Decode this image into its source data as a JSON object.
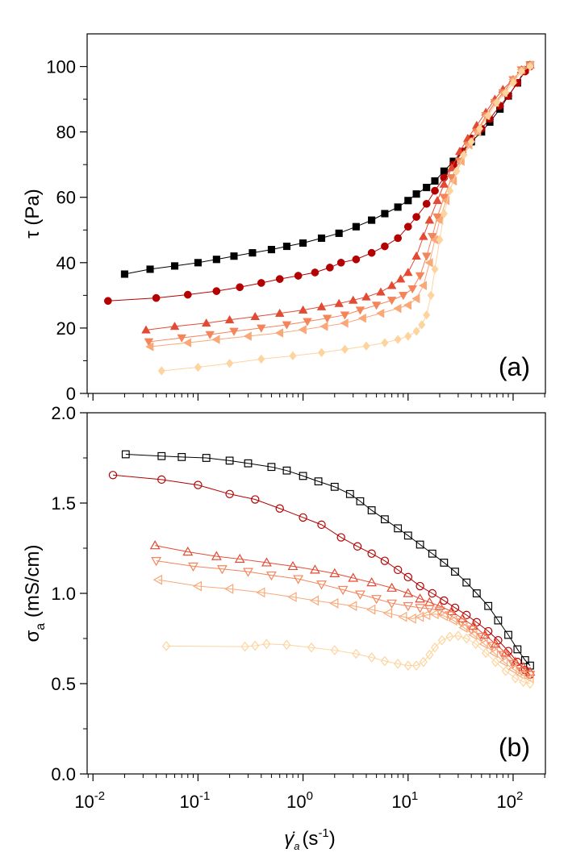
{
  "chart_data": [
    {
      "type": "line",
      "xscale": "log",
      "xlim": [
        0.0088,
        203
      ],
      "xticks": [
        0.01,
        0.1,
        1,
        10,
        100
      ],
      "ylim": [
        0,
        110
      ],
      "yticks": [
        0,
        20,
        40,
        60,
        80,
        100
      ],
      "ylabel": "τ (Pa)",
      "annotation": "(a)",
      "filled": true,
      "series": [
        {
          "color": "#000000",
          "marker": "square",
          "x": [
            0.02,
            0.035,
            0.06,
            0.1,
            0.15,
            0.22,
            0.33,
            0.5,
            0.7,
            1.0,
            1.5,
            2.2,
            3.2,
            4.5,
            6,
            8,
            10,
            12,
            15,
            18,
            22,
            27,
            33,
            40,
            50,
            60,
            75,
            90,
            110,
            130,
            145
          ],
          "values": [
            36.5,
            38,
            39,
            40,
            41,
            42,
            43,
            44,
            45,
            46,
            47.5,
            49,
            51,
            53,
            55,
            57,
            59,
            61,
            63,
            65,
            68,
            71,
            74,
            77,
            80,
            83,
            87,
            91,
            95,
            99,
            100.5
          ]
        },
        {
          "color": "#b30000",
          "marker": "circle",
          "x": [
            0.0139,
            0.04,
            0.08,
            0.15,
            0.25,
            0.4,
            0.6,
            0.9,
            1.3,
            1.8,
            2.3,
            3.2,
            4.5,
            6,
            8,
            10,
            12,
            15,
            18,
            22,
            27,
            33,
            40,
            50,
            60,
            75,
            90,
            110,
            130,
            145
          ],
          "values": [
            28.3,
            29.2,
            30.2,
            31.3,
            32.5,
            33.8,
            35,
            36,
            37,
            38.5,
            40,
            41,
            43,
            45,
            47.5,
            51,
            54,
            58,
            62,
            66,
            70,
            74,
            78,
            81,
            84,
            88,
            91,
            95,
            98.5,
            100
          ]
        },
        {
          "color": "#e34a33",
          "marker": "triangle-up",
          "x": [
            0.032,
            0.06,
            0.12,
            0.2,
            0.35,
            0.6,
            1,
            1.5,
            2.2,
            3,
            4,
            5.5,
            7,
            8.5,
            10,
            12,
            14,
            16,
            19,
            22,
            26,
            31,
            37,
            45,
            55,
            67,
            80,
            100,
            120,
            145
          ],
          "values": [
            19.4,
            20.5,
            21.5,
            22.5,
            23.5,
            24.5,
            25.5,
            26.5,
            27.5,
            28.5,
            29.5,
            31,
            33,
            35,
            37,
            42,
            48,
            53,
            59,
            64,
            69,
            74,
            78,
            82,
            86,
            90,
            93,
            96,
            99,
            100.5
          ]
        },
        {
          "color": "#f4845a",
          "marker": "triangle-down",
          "x": [
            0.034,
            0.07,
            0.13,
            0.22,
            0.4,
            0.7,
            1.1,
            1.7,
            2.5,
            3.5,
            5,
            7,
            9,
            11,
            13,
            15,
            17,
            19,
            22,
            26,
            31,
            37,
            45,
            55,
            67,
            80,
            100,
            120,
            145
          ],
          "values": [
            15.8,
            17,
            18,
            19,
            20,
            21,
            22,
            23,
            24,
            25.5,
            27,
            28.5,
            30,
            32,
            36,
            42,
            48,
            54,
            60,
            66,
            71,
            76,
            80,
            85,
            89,
            92,
            96,
            99,
            100.5
          ]
        },
        {
          "color": "#f9a878",
          "marker": "triangle-left",
          "x": [
            0.035,
            0.08,
            0.15,
            0.3,
            0.6,
            1.0,
            1.6,
            2.5,
            3.7,
            5.5,
            8,
            10,
            12,
            14,
            16,
            18,
            20,
            23,
            27,
            32,
            38,
            46,
            56,
            68,
            82,
            100,
            120,
            145
          ],
          "values": [
            14.3,
            15.5,
            16.5,
            17.5,
            18.5,
            19.5,
            20.5,
            21.5,
            23,
            24.5,
            26,
            27,
            29,
            33,
            40,
            47,
            53,
            59,
            65,
            71,
            76,
            80,
            85,
            89,
            92,
            96,
            99,
            100.5
          ]
        },
        {
          "color": "#fdd49e",
          "marker": "diamond",
          "x": [
            0.045,
            0.1,
            0.2,
            0.4,
            0.8,
            1.5,
            2.5,
            4,
            6,
            8,
            10,
            12,
            13.5,
            15,
            16.5,
            18,
            20,
            22,
            25,
            29,
            34,
            40,
            48,
            58,
            70,
            85,
            100,
            120,
            145
          ],
          "values": [
            6.9,
            8,
            9.2,
            10.5,
            11.5,
            12.5,
            13.5,
            14.5,
            15.5,
            16.5,
            17.5,
            19,
            21,
            24,
            30,
            38,
            47,
            55,
            62,
            68,
            73,
            77,
            81,
            85,
            89,
            92,
            95,
            98.5,
            100
          ]
        }
      ]
    },
    {
      "type": "line",
      "xscale": "log",
      "xlim": [
        0.0088,
        203
      ],
      "xticks": [
        {
          "value": 0.01,
          "label": "10",
          "exponent": "-2"
        },
        {
          "value": 0.1,
          "label": "10",
          "exponent": "-1"
        },
        {
          "value": 1,
          "label": "10",
          "exponent": "0"
        },
        {
          "value": 10,
          "label": "10",
          "exponent": "1"
        },
        {
          "value": 100,
          "label": "10",
          "exponent": "2"
        }
      ],
      "ylim": [
        0,
        2.0
      ],
      "yticks": [
        {
          "value": 0,
          "label": "0.0"
        },
        0.5,
        {
          "value": 1,
          "label": "1.0"
        },
        1.5,
        {
          "value": 2,
          "label": "2.0"
        }
      ],
      "xlabel": [
        "γ̇",
        "a",
        "(s",
        "-1",
        ")"
      ],
      "ylabel": [
        "σ",
        "a",
        " (mS/cm)"
      ],
      "annotation": "(b)",
      "filled": false,
      "series": [
        {
          "color": "#000000",
          "marker": "square",
          "x": [
            0.0205,
            0.045,
            0.07,
            0.12,
            0.2,
            0.3,
            0.5,
            0.7,
            1.0,
            1.4,
            2,
            2.8,
            3.5,
            4.5,
            6,
            8,
            10,
            13,
            17,
            22,
            28,
            36,
            45,
            58,
            72,
            90,
            110,
            130,
            145
          ],
          "values": [
            1.77,
            1.76,
            1.755,
            1.75,
            1.735,
            1.72,
            1.7,
            1.68,
            1.65,
            1.62,
            1.59,
            1.55,
            1.51,
            1.46,
            1.41,
            1.36,
            1.32,
            1.27,
            1.22,
            1.17,
            1.12,
            1.06,
            1.0,
            0.93,
            0.85,
            0.77,
            0.69,
            0.63,
            0.6
          ]
        },
        {
          "color": "#b30000",
          "marker": "circle",
          "x": [
            0.0155,
            0.045,
            0.1,
            0.2,
            0.35,
            0.6,
            1,
            1.5,
            2.3,
            3.3,
            4.5,
            6,
            8,
            10,
            13,
            17,
            22,
            28,
            36,
            45,
            58,
            72,
            90,
            110,
            130,
            145
          ],
          "values": [
            1.655,
            1.63,
            1.6,
            1.55,
            1.52,
            1.47,
            1.42,
            1.38,
            1.31,
            1.26,
            1.22,
            1.18,
            1.13,
            1.09,
            1.04,
            1.0,
            0.96,
            0.92,
            0.88,
            0.84,
            0.79,
            0.74,
            0.68,
            0.62,
            0.575,
            0.55
          ]
        },
        {
          "color": "#e34a33",
          "marker": "triangle-up",
          "x": [
            0.039,
            0.08,
            0.15,
            0.25,
            0.45,
            0.8,
            1.3,
            2,
            3,
            4.5,
            7,
            10,
            13,
            16,
            20,
            26,
            33,
            42,
            54,
            68,
            85,
            105,
            125,
            145
          ],
          "values": [
            1.265,
            1.23,
            1.205,
            1.19,
            1.17,
            1.15,
            1.13,
            1.11,
            1.085,
            1.06,
            1.03,
            1.0,
            0.97,
            0.95,
            0.93,
            0.9,
            0.86,
            0.82,
            0.77,
            0.72,
            0.67,
            0.62,
            0.59,
            0.565
          ]
        },
        {
          "color": "#f4845a",
          "marker": "triangle-down",
          "x": [
            0.04,
            0.09,
            0.17,
            0.3,
            0.5,
            0.9,
            1.5,
            2.4,
            3.5,
            5,
            7,
            10,
            13,
            16,
            20,
            25,
            32,
            40,
            50,
            63,
            80,
            100,
            120,
            145
          ],
          "values": [
            1.18,
            1.15,
            1.135,
            1.12,
            1.1,
            1.08,
            1.05,
            1.02,
            0.995,
            0.97,
            0.945,
            0.93,
            0.92,
            0.915,
            0.905,
            0.88,
            0.84,
            0.8,
            0.76,
            0.71,
            0.66,
            0.61,
            0.57,
            0.55
          ]
        },
        {
          "color": "#f9a878",
          "marker": "triangle-left",
          "x": [
            0.042,
            0.1,
            0.2,
            0.4,
            0.8,
            1.3,
            2,
            3,
            4.5,
            6.5,
            9,
            11,
            13,
            15,
            18,
            22,
            27,
            34,
            42,
            53,
            66,
            82,
            100,
            120,
            145
          ],
          "values": [
            1.075,
            1.04,
            1.025,
            1.005,
            0.98,
            0.96,
            0.945,
            0.93,
            0.91,
            0.89,
            0.87,
            0.86,
            0.87,
            0.88,
            0.885,
            0.875,
            0.85,
            0.81,
            0.77,
            0.72,
            0.67,
            0.62,
            0.58,
            0.55,
            0.53
          ]
        },
        {
          "color": "#fdd49e",
          "marker": "diamond",
          "x": [
            0.05,
            0.28,
            0.35,
            0.45,
            0.7,
            1.2,
            2,
            3.2,
            4.5,
            6,
            8,
            10,
            12,
            14,
            16,
            18,
            21,
            25,
            30,
            36,
            44,
            55,
            68,
            85,
            105,
            125,
            145
          ],
          "values": [
            0.708,
            0.705,
            0.71,
            0.72,
            0.715,
            0.7,
            0.685,
            0.665,
            0.645,
            0.625,
            0.61,
            0.6,
            0.6,
            0.62,
            0.66,
            0.7,
            0.74,
            0.76,
            0.765,
            0.75,
            0.72,
            0.67,
            0.62,
            0.57,
            0.53,
            0.51,
            0.5
          ]
        }
      ]
    }
  ]
}
